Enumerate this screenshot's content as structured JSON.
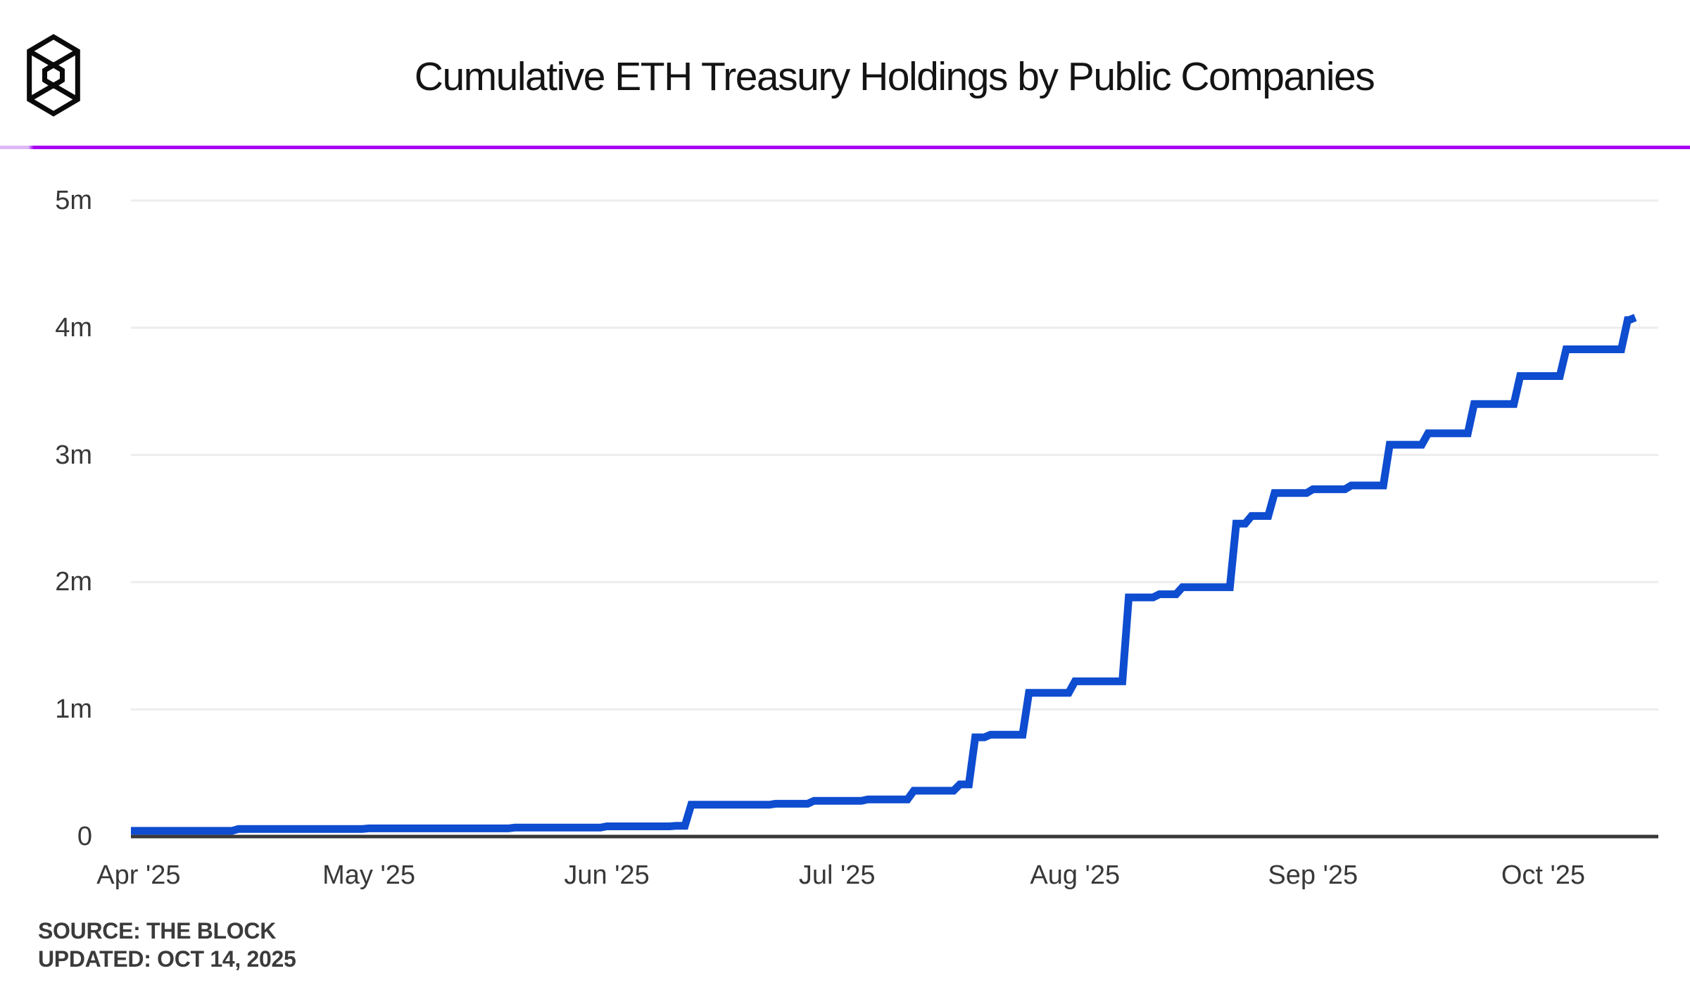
{
  "header": {
    "logo": "the-block-logo"
  },
  "source": {
    "label": "SOURCE: THE BLOCK",
    "updated": "UPDATED: OCT 14, 2025"
  },
  "colors": {
    "background": "#ffffff",
    "title_text": "#141414",
    "tick_text": "#383838",
    "accent_rule": "#a800f2",
    "accent_rule_fade": "#ddb9f6",
    "series_line": "#0e4cd0",
    "axis_line": "#383838",
    "gridline": "#ededed",
    "logo": "#0a0a0a"
  },
  "chart_data": {
    "type": "line",
    "subtype": "step-cumulative",
    "title": "Cumulative ETH Treasury Holdings by Public Companies",
    "xlabel": "",
    "ylabel": "",
    "unit": "ETH",
    "legend": "none",
    "grid": "horizontal",
    "x_domain": [
      "2025-03-31",
      "2025-10-16"
    ],
    "ylim": [
      0,
      5000000
    ],
    "y_ticks": [
      {
        "value": 0,
        "label": "0"
      },
      {
        "value": 1000000,
        "label": "1m"
      },
      {
        "value": 2000000,
        "label": "2m"
      },
      {
        "value": 3000000,
        "label": "3m"
      },
      {
        "value": 4000000,
        "label": "4m"
      },
      {
        "value": 5000000,
        "label": "5m"
      }
    ],
    "x_ticks": [
      {
        "date": "2025-04-01",
        "label": "Apr '25"
      },
      {
        "date": "2025-05-01",
        "label": "May '25"
      },
      {
        "date": "2025-06-01",
        "label": "Jun '25"
      },
      {
        "date": "2025-07-01",
        "label": "Jul '25"
      },
      {
        "date": "2025-08-01",
        "label": "Aug '25"
      },
      {
        "date": "2025-09-01",
        "label": "Sep '25"
      },
      {
        "date": "2025-10-01",
        "label": "Oct '25"
      }
    ],
    "series": [
      {
        "name": "Cumulative ETH treasury holdings",
        "points": [
          {
            "date": "2025-03-31",
            "eth": 45000
          },
          {
            "date": "2025-04-14",
            "eth": 60000
          },
          {
            "date": "2025-05-01",
            "eth": 64000
          },
          {
            "date": "2025-05-20",
            "eth": 70000
          },
          {
            "date": "2025-06-01",
            "eth": 80000
          },
          {
            "date": "2025-06-10",
            "eth": 84000
          },
          {
            "date": "2025-06-12",
            "eth": 250000
          },
          {
            "date": "2025-06-23",
            "eth": 258000
          },
          {
            "date": "2025-06-28",
            "eth": 281000
          },
          {
            "date": "2025-07-05",
            "eth": 292000
          },
          {
            "date": "2025-07-11",
            "eth": 360000
          },
          {
            "date": "2025-07-17",
            "eth": 410000
          },
          {
            "date": "2025-07-19",
            "eth": 780000
          },
          {
            "date": "2025-07-21",
            "eth": 801000
          },
          {
            "date": "2025-07-26",
            "eth": 1130000
          },
          {
            "date": "2025-08-01",
            "eth": 1220000
          },
          {
            "date": "2025-08-08",
            "eth": 1880000
          },
          {
            "date": "2025-08-12",
            "eth": 1905000
          },
          {
            "date": "2025-08-15",
            "eth": 1960000
          },
          {
            "date": "2025-08-22",
            "eth": 2460000
          },
          {
            "date": "2025-08-24",
            "eth": 2520000
          },
          {
            "date": "2025-08-27",
            "eth": 2700000
          },
          {
            "date": "2025-09-01",
            "eth": 2730000
          },
          {
            "date": "2025-09-06",
            "eth": 2760000
          },
          {
            "date": "2025-09-11",
            "eth": 3080000
          },
          {
            "date": "2025-09-16",
            "eth": 3170000
          },
          {
            "date": "2025-09-22",
            "eth": 3400000
          },
          {
            "date": "2025-09-28",
            "eth": 3620000
          },
          {
            "date": "2025-10-04",
            "eth": 3830000
          },
          {
            "date": "2025-10-12",
            "eth": 4060000
          },
          {
            "date": "2025-10-13",
            "eth": 4080000
          }
        ]
      }
    ]
  }
}
